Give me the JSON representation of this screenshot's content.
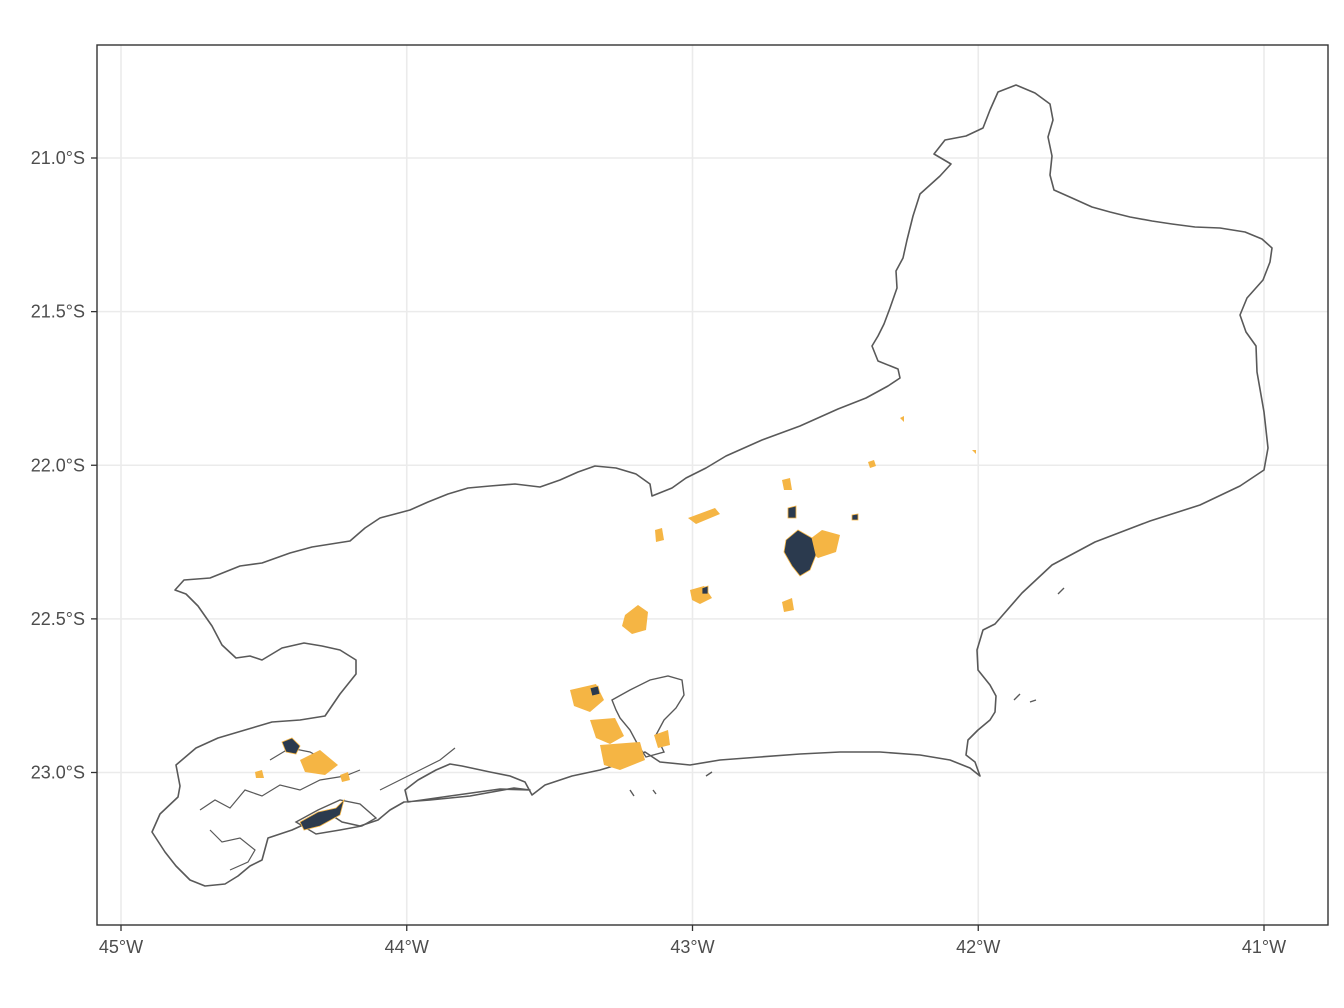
{
  "map": {
    "x_ticks": [
      {
        "lon": -45,
        "label": "45°W"
      },
      {
        "lon": -44,
        "label": "44°W"
      },
      {
        "lon": -43,
        "label": "43°W"
      },
      {
        "lon": -42,
        "label": "42°W"
      },
      {
        "lon": -41,
        "label": "41°W"
      }
    ],
    "y_ticks": [
      {
        "lat": -21.0,
        "label": "21.0°S"
      },
      {
        "lat": -21.5,
        "label": "21.5°S"
      },
      {
        "lat": -22.0,
        "label": "22.0°S"
      },
      {
        "lat": -22.5,
        "label": "22.5°S"
      },
      {
        "lat": -23.0,
        "label": "23.0°S"
      }
    ],
    "lon_range": [
      -45.09,
      -40.82
    ],
    "lat_range": [
      -23.5,
      -20.63
    ],
    "grid": true,
    "colors": {
      "border": "#595959",
      "grid": "#ebebeb",
      "panel_border": "#333333",
      "urban_core": "#2b3a4e",
      "urban_fringe": "#f5b544"
    }
  }
}
